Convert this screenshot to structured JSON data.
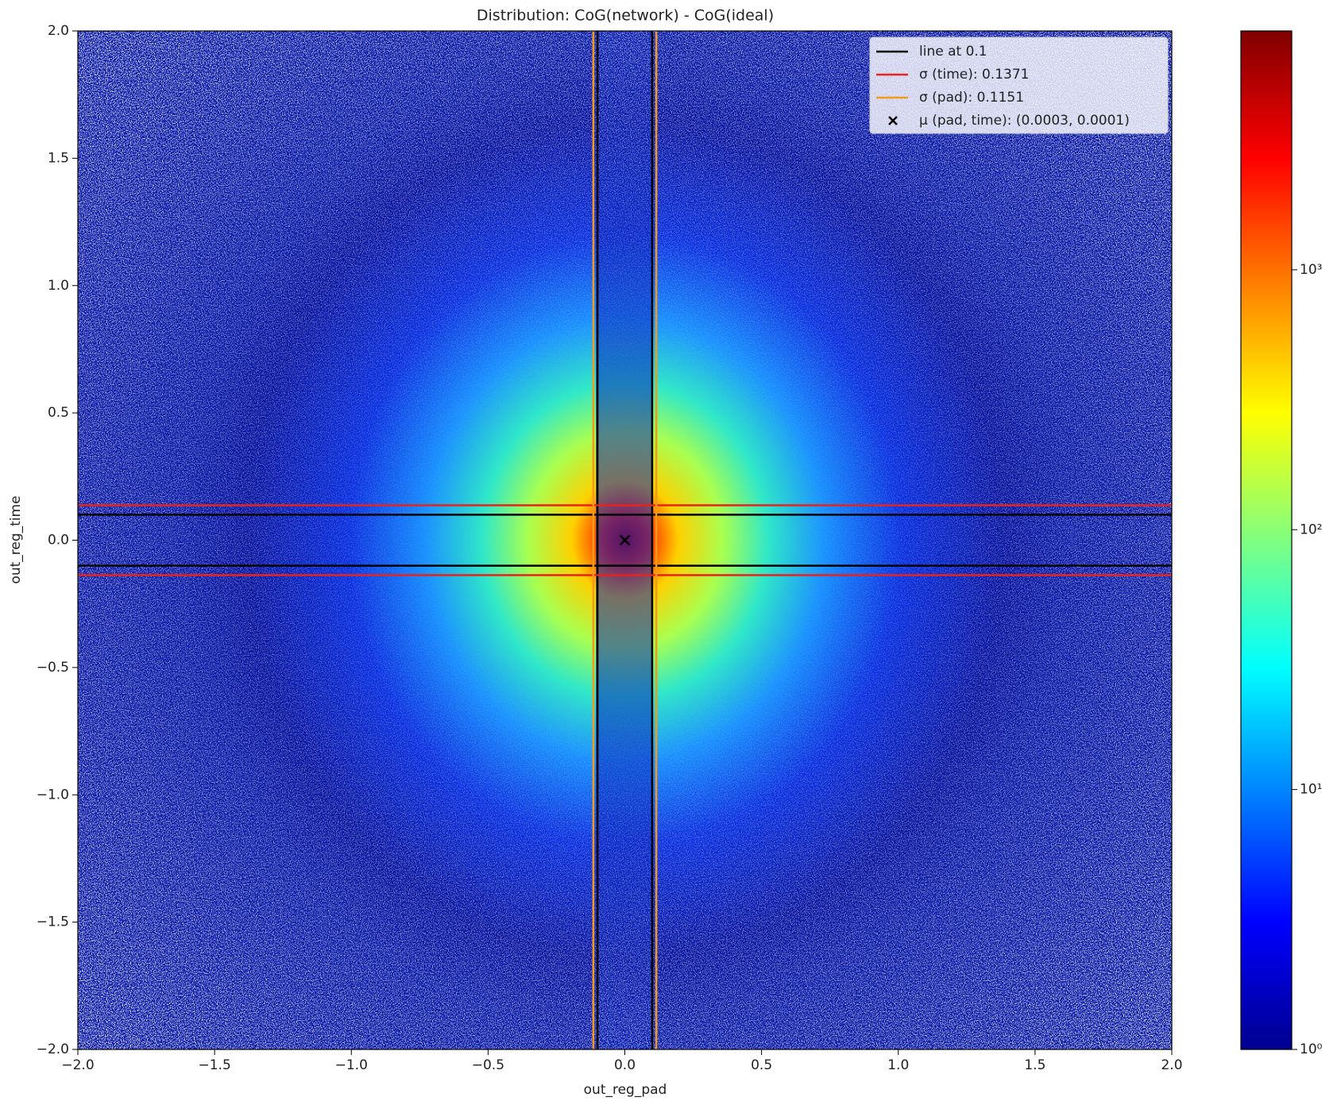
{
  "chart_data": {
    "type": "hist2d",
    "title": "Distribution: CoG(network) - CoG(ideal)",
    "x_label": "out_reg_pad",
    "y_label": "out_reg_time",
    "xlim": [
      -2.0,
      2.0
    ],
    "ylim": [
      -2.0,
      2.0
    ],
    "xticks": [
      {
        "value": -2.0,
        "label": "−2.0"
      },
      {
        "value": -1.5,
        "label": "−1.5"
      },
      {
        "value": -1.0,
        "label": "−1.0"
      },
      {
        "value": -0.5,
        "label": "−0.5"
      },
      {
        "value": 0.0,
        "label": "0.0"
      },
      {
        "value": 0.5,
        "label": "0.5"
      },
      {
        "value": 1.0,
        "label": "1.0"
      },
      {
        "value": 1.5,
        "label": "1.5"
      },
      {
        "value": 2.0,
        "label": "2.0"
      }
    ],
    "yticks": [
      {
        "value": -2.0,
        "label": "−2.0"
      },
      {
        "value": -1.5,
        "label": "−1.5"
      },
      {
        "value": -1.0,
        "label": "−1.0"
      },
      {
        "value": -0.5,
        "label": "−0.5"
      },
      {
        "value": 0.0,
        "label": "0.0"
      },
      {
        "value": 0.5,
        "label": "0.5"
      },
      {
        "value": 1.0,
        "label": "1.0"
      },
      {
        "value": 1.5,
        "label": "1.5"
      },
      {
        "value": 2.0,
        "label": "2.0"
      }
    ],
    "colormap": "jet",
    "color_scale": "log",
    "clim": [
      1,
      8300
    ],
    "cticks": [
      {
        "value": 1,
        "label": "10⁰"
      },
      {
        "value": 10,
        "label": "10¹"
      },
      {
        "value": 100,
        "label": "10²"
      },
      {
        "value": 1000,
        "label": "10³"
      }
    ],
    "legend_position": "upper right",
    "series": [
      {
        "name": "line at 0.1",
        "color": "#000000",
        "value": 0.1,
        "orientation": "both"
      },
      {
        "name": "σ (time): 0.1371",
        "color": "#e8221c",
        "value": 0.1371,
        "orientation": "horizontal"
      },
      {
        "name": "σ (pad): 0.1151",
        "color": "#f29a1c",
        "value": 0.1151,
        "orientation": "vertical"
      },
      {
        "name": "μ (pad, time): (0.0003, 0.0001)",
        "color": "#000000",
        "x": 0.0003,
        "y": 0.0001,
        "marker": "x"
      }
    ]
  }
}
